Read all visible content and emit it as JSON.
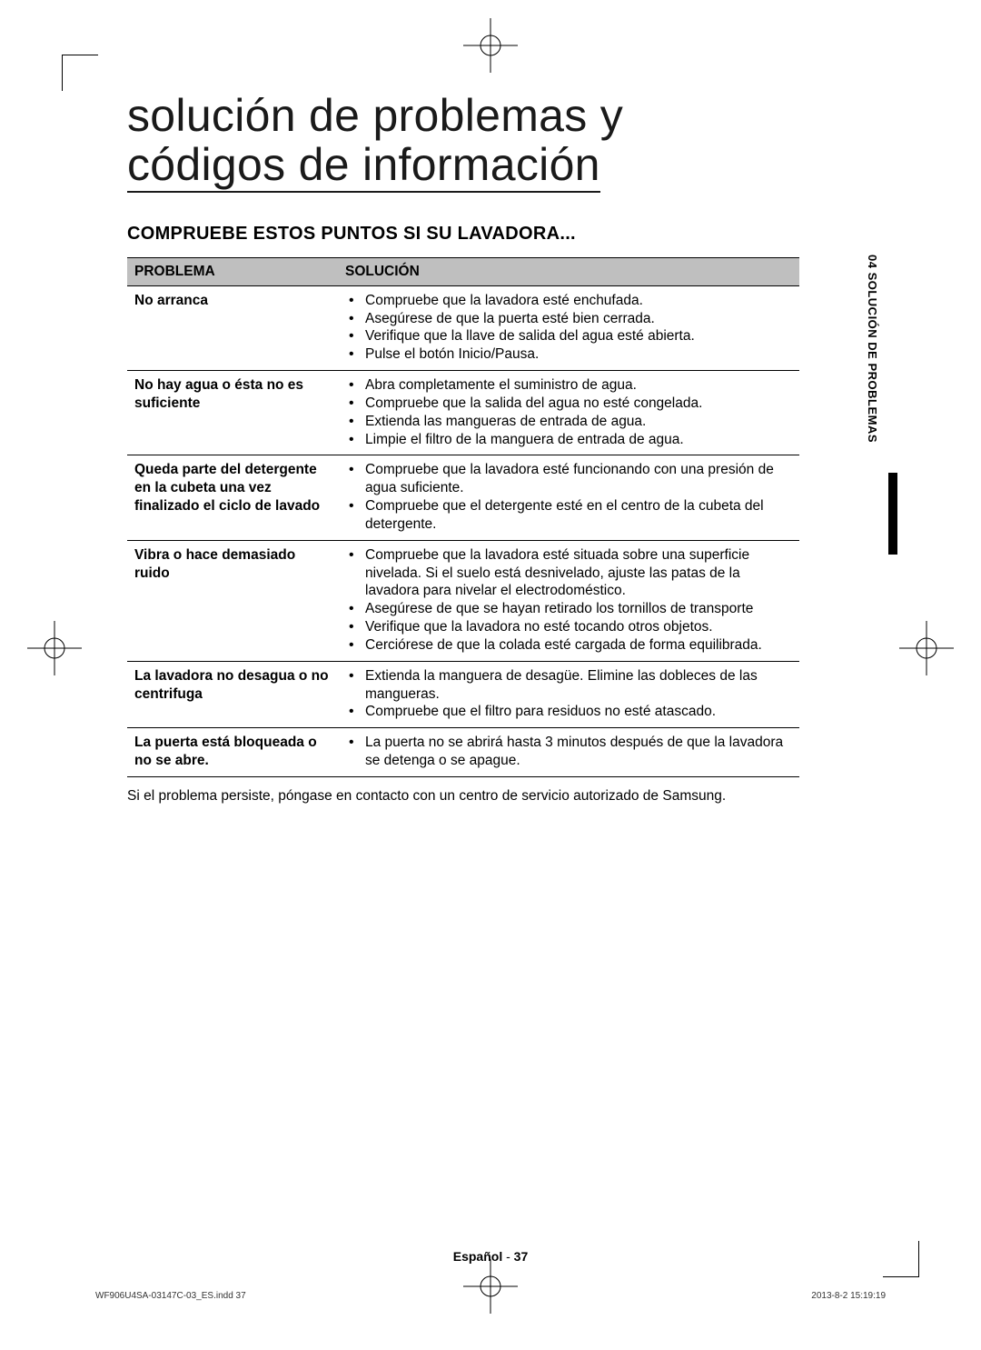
{
  "title_line1": "solución de problemas y",
  "title_line2": "códigos de información",
  "subtitle": "COMPRUEBE ESTOS PUNTOS SI SU LAVADORA...",
  "table": {
    "header_problem": "PROBLEMA",
    "header_solution": "SOLUCIÓN",
    "rows": [
      {
        "problem": "No arranca",
        "solutions": [
          "Compruebe que la lavadora esté enchufada.",
          "Asegúrese de que la puerta esté bien cerrada.",
          "Verifique que la llave de salida del agua esté abierta.",
          "Pulse el botón Inicio/Pausa."
        ]
      },
      {
        "problem": "No hay agua o ésta no es suficiente",
        "solutions": [
          "Abra completamente el suministro de agua.",
          "Compruebe que la salida del agua no esté congelada.",
          "Extienda las mangueras de entrada de agua.",
          "Limpie el filtro de la manguera de entrada de agua."
        ]
      },
      {
        "problem": "Queda parte del detergente en la cubeta una vez finalizado el ciclo de lavado",
        "solutions": [
          "Compruebe que la lavadora esté funcionando con una presión de agua suficiente.",
          "Compruebe que el detergente esté en el centro de la cubeta del detergente."
        ]
      },
      {
        "problem": "Vibra o hace demasiado ruido",
        "solutions": [
          "Compruebe que la lavadora esté situada sobre una superficie nivelada. Si el suelo está desnivelado, ajuste las patas de la lavadora para nivelar el electrodoméstico.",
          "Asegúrese de que se hayan retirado los tornillos de transporte",
          "Verifique que la lavadora no esté tocando otros objetos.",
          "Cerciórese de que la colada esté cargada de forma equilibrada."
        ]
      },
      {
        "problem": "La lavadora no desagua o no centrifuga",
        "solutions": [
          "Extienda la manguera de desagüe. Elimine las dobleces de las mangueras.",
          "Compruebe que el filtro para residuos no esté atascado."
        ]
      },
      {
        "problem": "La puerta está bloqueada o no se abre.",
        "solutions": [
          "La puerta no se abrirá hasta 3 minutos después de que la lavadora se detenga o se apague."
        ]
      }
    ]
  },
  "note": "Si el problema persiste, póngase en contacto con un centro de servicio autorizado de Samsung.",
  "side_tab": "04  SOLUCIÓN DE PROBLEMAS",
  "footer": {
    "language": "Español",
    "separator": " - ",
    "page_number": "37",
    "file_info": "WF906U4SA-03147C-03_ES.indd   37",
    "timestamp": "2013-8-2   15:19:19"
  }
}
